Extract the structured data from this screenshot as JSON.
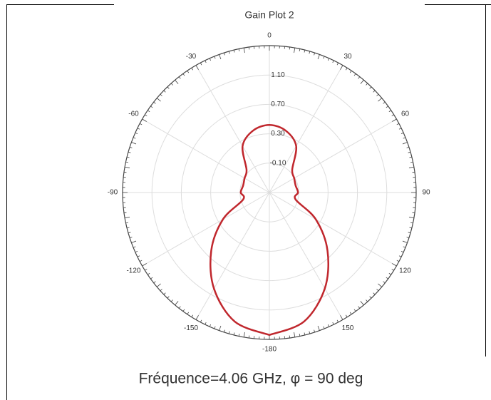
{
  "chart_data": {
    "type": "polar",
    "title": "Gain Plot 2",
    "caption": "Fréquence=4.06 GHz, φ = 90 deg",
    "thetaticks": [
      0,
      30,
      60,
      90,
      120,
      150,
      -180,
      -150,
      -120,
      -90,
      -60,
      -30
    ],
    "rlim": [
      -0.5,
      1.5
    ],
    "rticks": [
      {
        "value": -0.1,
        "label": "-0.10"
      },
      {
        "value": 0.3,
        "label": "0.30"
      },
      {
        "value": 0.7,
        "label": "0.70"
      },
      {
        "value": 1.1,
        "label": "1.10"
      }
    ],
    "grid": true,
    "series": [
      {
        "color": "#c0272d",
        "theta": [
          -180,
          -165,
          -150,
          -135,
          -120,
          -105,
          -90,
          -75,
          -60,
          -45,
          -30,
          -15,
          0,
          15,
          30,
          45,
          60,
          75,
          90,
          105,
          120,
          135,
          150,
          165,
          180
        ],
        "values": [
          1.44,
          1.32,
          1.01,
          0.62,
          0.23,
          -0.13,
          -0.11,
          -0.13,
          -0.11,
          -0.06,
          0.23,
          0.37,
          0.42,
          0.37,
          0.23,
          -0.06,
          -0.11,
          -0.13,
          -0.11,
          -0.13,
          0.23,
          0.62,
          1.01,
          1.32,
          1.44
        ]
      }
    ]
  }
}
